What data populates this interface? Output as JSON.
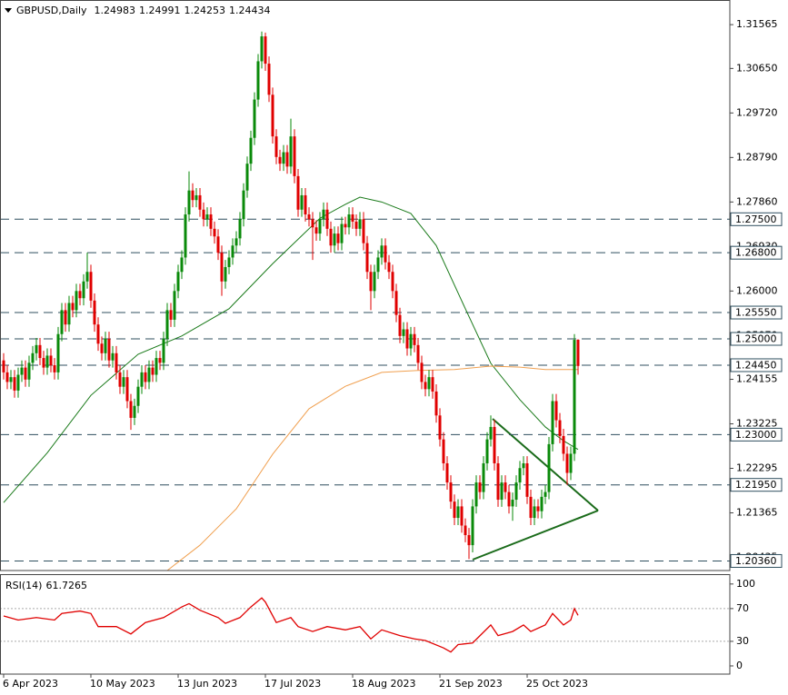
{
  "chart_data": {
    "type": "candlestick",
    "title": "GBPUSD,Daily",
    "up_color": "#0a8a0a",
    "down_color": "#e00000",
    "level_color": "#2f4f5f",
    "xlim": [
      -1,
      199.75
    ],
    "xticks": [
      {
        "value": 0,
        "label": "6 Apr 2023"
      },
      {
        "value": 24,
        "label": "10 May 2023"
      },
      {
        "value": 48,
        "label": "13 Jun 2023"
      },
      {
        "value": 72,
        "label": "17 Jul 2023"
      },
      {
        "value": 96,
        "label": "18 Aug 2023"
      },
      {
        "value": 120,
        "label": "21 Sep 2023"
      },
      {
        "value": 144,
        "label": "25 Oct 2023"
      }
    ],
    "ylim": [
      1.2016,
      1.3208
    ],
    "yticks": [
      1.31565,
      {
        "value": 1.3065,
        "label": "1.30650"
      },
      {
        "value": 1.2972,
        "label": "1.29720"
      },
      {
        "value": 1.2879,
        "label": "1.28790"
      },
      {
        "value": 1.2786,
        "label": "1.27860"
      },
      {
        "value": 1.2693,
        "label": "1.26930"
      },
      {
        "value": 1.26,
        "label": "1.26000"
      },
      {
        "value": 1.2507,
        "label": "1.25070"
      },
      1.24155,
      1.23225,
      1.22295,
      1.21365,
      1.20435
    ],
    "levels": [
      {
        "value": 1.275,
        "label": "1.27500"
      },
      {
        "value": 1.268,
        "label": "1.26800"
      },
      {
        "value": 1.2555,
        "label": "1.25550"
      },
      {
        "value": 1.25,
        "label": "1.25000"
      },
      {
        "value": 1.2445,
        "label": "1.24450"
      },
      {
        "value": 1.23,
        "label": "1.23000"
      },
      {
        "value": 1.2195,
        "label": "1.21950"
      },
      {
        "value": 1.2036,
        "label": "1.20360"
      }
    ],
    "candles": [
      [
        1.2455,
        1.247,
        1.2415,
        1.243
      ],
      [
        1.243,
        1.2445,
        1.2395,
        1.241
      ],
      [
        1.241,
        1.2435,
        1.2395,
        1.242
      ],
      [
        1.242,
        1.2435,
        1.2377,
        1.2392
      ],
      [
        1.2392,
        1.244,
        1.2377,
        1.2425
      ],
      [
        1.2425,
        1.2455,
        1.241,
        1.244
      ],
      [
        1.244,
        1.2455,
        1.24,
        1.2415
      ],
      [
        1.2415,
        1.2465,
        1.24,
        1.245
      ],
      [
        1.245,
        1.2485,
        1.2435,
        1.247
      ],
      [
        1.247,
        1.2502,
        1.2455,
        1.2487
      ],
      [
        1.2487,
        1.2502,
        1.2445,
        1.246
      ],
      [
        1.246,
        1.2475,
        1.2425,
        1.244
      ],
      [
        1.244,
        1.248,
        1.2425,
        1.2465
      ],
      [
        1.2465,
        1.248,
        1.243,
        1.2445
      ],
      [
        1.2445,
        1.246,
        1.2415,
        1.243
      ],
      [
        1.243,
        1.2525,
        1.2415,
        1.251
      ],
      [
        1.251,
        1.2575,
        1.2495,
        1.256
      ],
      [
        1.256,
        1.2575,
        1.2515,
        1.253
      ],
      [
        1.253,
        1.259,
        1.2515,
        1.2575
      ],
      [
        1.2575,
        1.259,
        1.2545,
        1.256
      ],
      [
        1.256,
        1.2615,
        1.2545,
        1.26
      ],
      [
        1.26,
        1.2615,
        1.257,
        1.2585
      ],
      [
        1.2585,
        1.2635,
        1.257,
        1.262
      ],
      [
        1.262,
        1.268,
        1.2605,
        1.264
      ],
      [
        1.264,
        1.2655,
        1.2565,
        1.258
      ],
      [
        1.258,
        1.2595,
        1.2515,
        1.253
      ],
      [
        1.253,
        1.2545,
        1.2475,
        1.249
      ],
      [
        1.249,
        1.2505,
        1.2455,
        1.247
      ],
      [
        1.247,
        1.2515,
        1.2455,
        1.25
      ],
      [
        1.25,
        1.2515,
        1.244,
        1.2455
      ],
      [
        1.2455,
        1.2485,
        1.244,
        1.247
      ],
      [
        1.247,
        1.2485,
        1.2415,
        1.243
      ],
      [
        1.243,
        1.2445,
        1.2385,
        1.24
      ],
      [
        1.24,
        1.2435,
        1.2385,
        1.242
      ],
      [
        1.242,
        1.2435,
        1.2355,
        1.237
      ],
      [
        1.237,
        1.2385,
        1.231,
        1.2335
      ],
      [
        1.2335,
        1.2375,
        1.232,
        1.236
      ],
      [
        1.236,
        1.2415,
        1.2345,
        1.24
      ],
      [
        1.24,
        1.2445,
        1.2385,
        1.243
      ],
      [
        1.243,
        1.2445,
        1.2395,
        1.241
      ],
      [
        1.241,
        1.2455,
        1.2395,
        1.244
      ],
      [
        1.244,
        1.2455,
        1.241,
        1.2425
      ],
      [
        1.2425,
        1.2475,
        1.241,
        1.246
      ],
      [
        1.246,
        1.2475,
        1.2435,
        1.245
      ],
      [
        1.245,
        1.2515,
        1.2435,
        1.25
      ],
      [
        1.25,
        1.2575,
        1.2485,
        1.256
      ],
      [
        1.256,
        1.2575,
        1.2525,
        1.254
      ],
      [
        1.254,
        1.2615,
        1.2525,
        1.26
      ],
      [
        1.26,
        1.2655,
        1.2585,
        1.264
      ],
      [
        1.264,
        1.2685,
        1.2625,
        1.267
      ],
      [
        1.267,
        1.2775,
        1.2655,
        1.276
      ],
      [
        1.276,
        1.285,
        1.2745,
        1.281
      ],
      [
        1.281,
        1.2825,
        1.2775,
        1.279
      ],
      [
        1.279,
        1.2815,
        1.2775,
        1.28
      ],
      [
        1.28,
        1.2815,
        1.2755,
        1.277
      ],
      [
        1.277,
        1.2785,
        1.2735,
        1.275
      ],
      [
        1.275,
        1.2775,
        1.2735,
        1.276
      ],
      [
        1.276,
        1.2775,
        1.2715,
        1.273
      ],
      [
        1.273,
        1.2745,
        1.2699,
        1.2714
      ],
      [
        1.2714,
        1.2729,
        1.2665,
        1.268
      ],
      [
        1.268,
        1.2695,
        1.259,
        1.262
      ],
      [
        1.262,
        1.2665,
        1.2605,
        1.265
      ],
      [
        1.265,
        1.2685,
        1.2635,
        1.267
      ],
      [
        1.267,
        1.271,
        1.2655,
        1.2695
      ],
      [
        1.2695,
        1.2725,
        1.268,
        1.271
      ],
      [
        1.271,
        1.2765,
        1.2695,
        1.275
      ],
      [
        1.275,
        1.2825,
        1.2735,
        1.281
      ],
      [
        1.281,
        1.2881,
        1.2795,
        1.2866
      ],
      [
        1.2866,
        1.2935,
        1.2851,
        1.292
      ],
      [
        1.292,
        1.3015,
        1.2905,
        1.3
      ],
      [
        1.3,
        1.3095,
        1.2985,
        1.308
      ],
      [
        1.308,
        1.3142,
        1.3065,
        1.3132
      ],
      [
        1.3132,
        1.314,
        1.306,
        1.3075
      ],
      [
        1.3075,
        1.309,
        1.2995,
        1.301
      ],
      [
        1.301,
        1.3025,
        1.2908,
        1.2923
      ],
      [
        1.2923,
        1.2938,
        1.2865,
        1.288
      ],
      [
        1.288,
        1.2895,
        1.2851,
        1.2866
      ],
      [
        1.2866,
        1.2905,
        1.2851,
        1.289
      ],
      [
        1.289,
        1.2905,
        1.2845,
        1.286
      ],
      [
        1.286,
        1.296,
        1.2845,
        1.2923
      ],
      [
        1.2923,
        1.2938,
        1.2825,
        1.284
      ],
      [
        1.284,
        1.2855,
        1.2755,
        1.277
      ],
      [
        1.277,
        1.2815,
        1.2755,
        1.28
      ],
      [
        1.28,
        1.2815,
        1.2745,
        1.276
      ],
      [
        1.276,
        1.2775,
        1.2735,
        1.275
      ],
      [
        1.275,
        1.2765,
        1.2665,
        1.2733
      ],
      [
        1.2733,
        1.2748,
        1.2705,
        1.272
      ],
      [
        1.272,
        1.2765,
        1.2705,
        1.275
      ],
      [
        1.275,
        1.2785,
        1.2735,
        1.277
      ],
      [
        1.277,
        1.2785,
        1.2715,
        1.273
      ],
      [
        1.273,
        1.2745,
        1.268,
        1.2695
      ],
      [
        1.2695,
        1.2735,
        1.268,
        1.272
      ],
      [
        1.272,
        1.2735,
        1.2685,
        1.27
      ],
      [
        1.27,
        1.2755,
        1.2685,
        1.274
      ],
      [
        1.274,
        1.2755,
        1.2718,
        1.2733
      ],
      [
        1.2733,
        1.2775,
        1.2718,
        1.276
      ],
      [
        1.276,
        1.2775,
        1.273,
        1.2745
      ],
      [
        1.2745,
        1.276,
        1.2715,
        1.273
      ],
      [
        1.273,
        1.2765,
        1.2715,
        1.275
      ],
      [
        1.275,
        1.2765,
        1.2685,
        1.27
      ],
      [
        1.27,
        1.2715,
        1.2625,
        1.264
      ],
      [
        1.264,
        1.2655,
        1.256,
        1.26
      ],
      [
        1.26,
        1.2655,
        1.2585,
        1.264
      ],
      [
        1.264,
        1.2685,
        1.2625,
        1.267
      ],
      [
        1.267,
        1.271,
        1.2655,
        1.2695
      ],
      [
        1.2695,
        1.271,
        1.2645,
        1.266
      ],
      [
        1.266,
        1.2675,
        1.2625,
        1.264
      ],
      [
        1.264,
        1.2655,
        1.2585,
        1.26
      ],
      [
        1.26,
        1.2615,
        1.2535,
        1.255
      ],
      [
        1.255,
        1.2565,
        1.2491,
        1.2506
      ],
      [
        1.2506,
        1.2535,
        1.2491,
        1.252
      ],
      [
        1.252,
        1.2535,
        1.2465,
        1.248
      ],
      [
        1.248,
        1.2525,
        1.2465,
        1.251
      ],
      [
        1.251,
        1.2525,
        1.2472,
        1.2487
      ],
      [
        1.2487,
        1.2502,
        1.2435,
        1.245
      ],
      [
        1.245,
        1.2465,
        1.2395,
        1.241
      ],
      [
        1.241,
        1.2425,
        1.238,
        1.2395
      ],
      [
        1.2395,
        1.2435,
        1.238,
        1.242
      ],
      [
        1.242,
        1.2435,
        1.2375,
        1.239
      ],
      [
        1.239,
        1.2405,
        1.2325,
        1.234
      ],
      [
        1.234,
        1.2355,
        1.2275,
        1.229
      ],
      [
        1.229,
        1.2305,
        1.2225,
        1.224
      ],
      [
        1.224,
        1.2255,
        1.2185,
        1.22
      ],
      [
        1.22,
        1.2215,
        1.2145,
        1.216
      ],
      [
        1.216,
        1.2175,
        1.2111,
        1.2126
      ],
      [
        1.2126,
        1.2165,
        1.2111,
        1.215
      ],
      [
        1.215,
        1.2165,
        1.2095,
        1.211
      ],
      [
        1.211,
        1.2125,
        1.2075,
        1.209
      ],
      [
        1.209,
        1.2105,
        1.204,
        1.2069
      ],
      [
        1.2069,
        1.2165,
        1.2054,
        1.215
      ],
      [
        1.215,
        1.2215,
        1.2135,
        1.22
      ],
      [
        1.22,
        1.2215,
        1.2165,
        1.218
      ],
      [
        1.218,
        1.2255,
        1.2165,
        1.224
      ],
      [
        1.224,
        1.2305,
        1.2225,
        1.229
      ],
      [
        1.229,
        1.234,
        1.2275,
        1.2316
      ],
      [
        1.2316,
        1.2331,
        1.2225,
        1.224
      ],
      [
        1.224,
        1.2255,
        1.2149,
        1.2164
      ],
      [
        1.2164,
        1.2215,
        1.2149,
        1.22
      ],
      [
        1.22,
        1.2215,
        1.2165,
        1.218
      ],
      [
        1.218,
        1.2195,
        1.2135,
        1.215
      ],
      [
        1.215,
        1.2179,
        1.212,
        1.2164
      ],
      [
        1.2164,
        1.2215,
        1.2149,
        1.22
      ],
      [
        1.22,
        1.2245,
        1.2185,
        1.223
      ],
      [
        1.223,
        1.2255,
        1.2215,
        1.224
      ],
      [
        1.224,
        1.2255,
        1.2155,
        1.217
      ],
      [
        1.217,
        1.2185,
        1.2111,
        1.2126
      ],
      [
        1.2126,
        1.2165,
        1.2111,
        1.215
      ],
      [
        1.215,
        1.2165,
        1.2125,
        1.214
      ],
      [
        1.214,
        1.2185,
        1.2125,
        1.217
      ],
      [
        1.217,
        1.2195,
        1.2155,
        1.218
      ],
      [
        1.218,
        1.2295,
        1.2165,
        1.228
      ],
      [
        1.228,
        1.2385,
        1.2265,
        1.237
      ],
      [
        1.237,
        1.2385,
        1.2315,
        1.233
      ],
      [
        1.233,
        1.2345,
        1.2282,
        1.2297
      ],
      [
        1.2297,
        1.2312,
        1.2245,
        1.226
      ],
      [
        1.226,
        1.2275,
        1.2195,
        1.222
      ],
      [
        1.222,
        1.2275,
        1.2205,
        1.226
      ],
      [
        1.226,
        1.251,
        1.2245,
        1.2498
      ],
      [
        1.24983,
        1.24991,
        1.24253,
        1.24434
      ]
    ],
    "moving_averages": [
      {
        "color": "#1a7a1a",
        "x": [
          0,
          12,
          24,
          37,
          49,
          62,
          74,
          87,
          94,
          98,
          104,
          112,
          119,
          127,
          134,
          142,
          149,
          154,
          158
        ],
        "values": [
          1.2158,
          1.2262,
          1.2382,
          1.2468,
          1.2506,
          1.2563,
          1.2657,
          1.2752,
          1.2781,
          1.2796,
          1.2786,
          1.2762,
          1.2695,
          1.2563,
          1.2449,
          1.2373,
          1.2316,
          1.2287,
          1.2269
        ]
      },
      {
        "color": "#f0a050",
        "x": [
          45,
          54,
          64,
          74,
          84,
          94,
          104,
          114,
          124,
          134,
          142,
          149,
          158
        ],
        "values": [
          1.2016,
          1.2069,
          1.2145,
          1.2259,
          1.2354,
          1.2401,
          1.243,
          1.2434,
          1.2436,
          1.2443,
          1.2441,
          1.2436,
          1.2436
        ]
      }
    ],
    "rsi": {
      "name": "RSI(14)",
      "color": "#e00000",
      "ylim": [
        -10,
        112
      ],
      "yticks": [
        100,
        70,
        30,
        0
      ],
      "levels": [
        70,
        30
      ],
      "x": [
        0,
        4,
        9,
        14,
        16,
        21,
        24,
        26,
        31,
        35,
        39,
        44,
        49,
        51,
        54,
        59,
        61,
        65,
        68,
        71,
        72,
        75,
        79,
        81,
        85,
        89,
        94,
        98,
        101,
        104,
        109,
        113,
        116,
        121,
        123,
        125,
        129,
        134,
        136,
        140,
        143,
        145,
        149,
        151,
        154,
        156,
        157,
        158
      ],
      "values": [
        61,
        56,
        59,
        56,
        64,
        67,
        64,
        48,
        48,
        39,
        53,
        59,
        72,
        76,
        68,
        59,
        52,
        59,
        72,
        83,
        78,
        53,
        59,
        48,
        42,
        48,
        44,
        48,
        33,
        44,
        37,
        33,
        31,
        22,
        17,
        26,
        28,
        50,
        37,
        42,
        50,
        42,
        50,
        64,
        50,
        56,
        70,
        61.7265
      ]
    }
  }
}
